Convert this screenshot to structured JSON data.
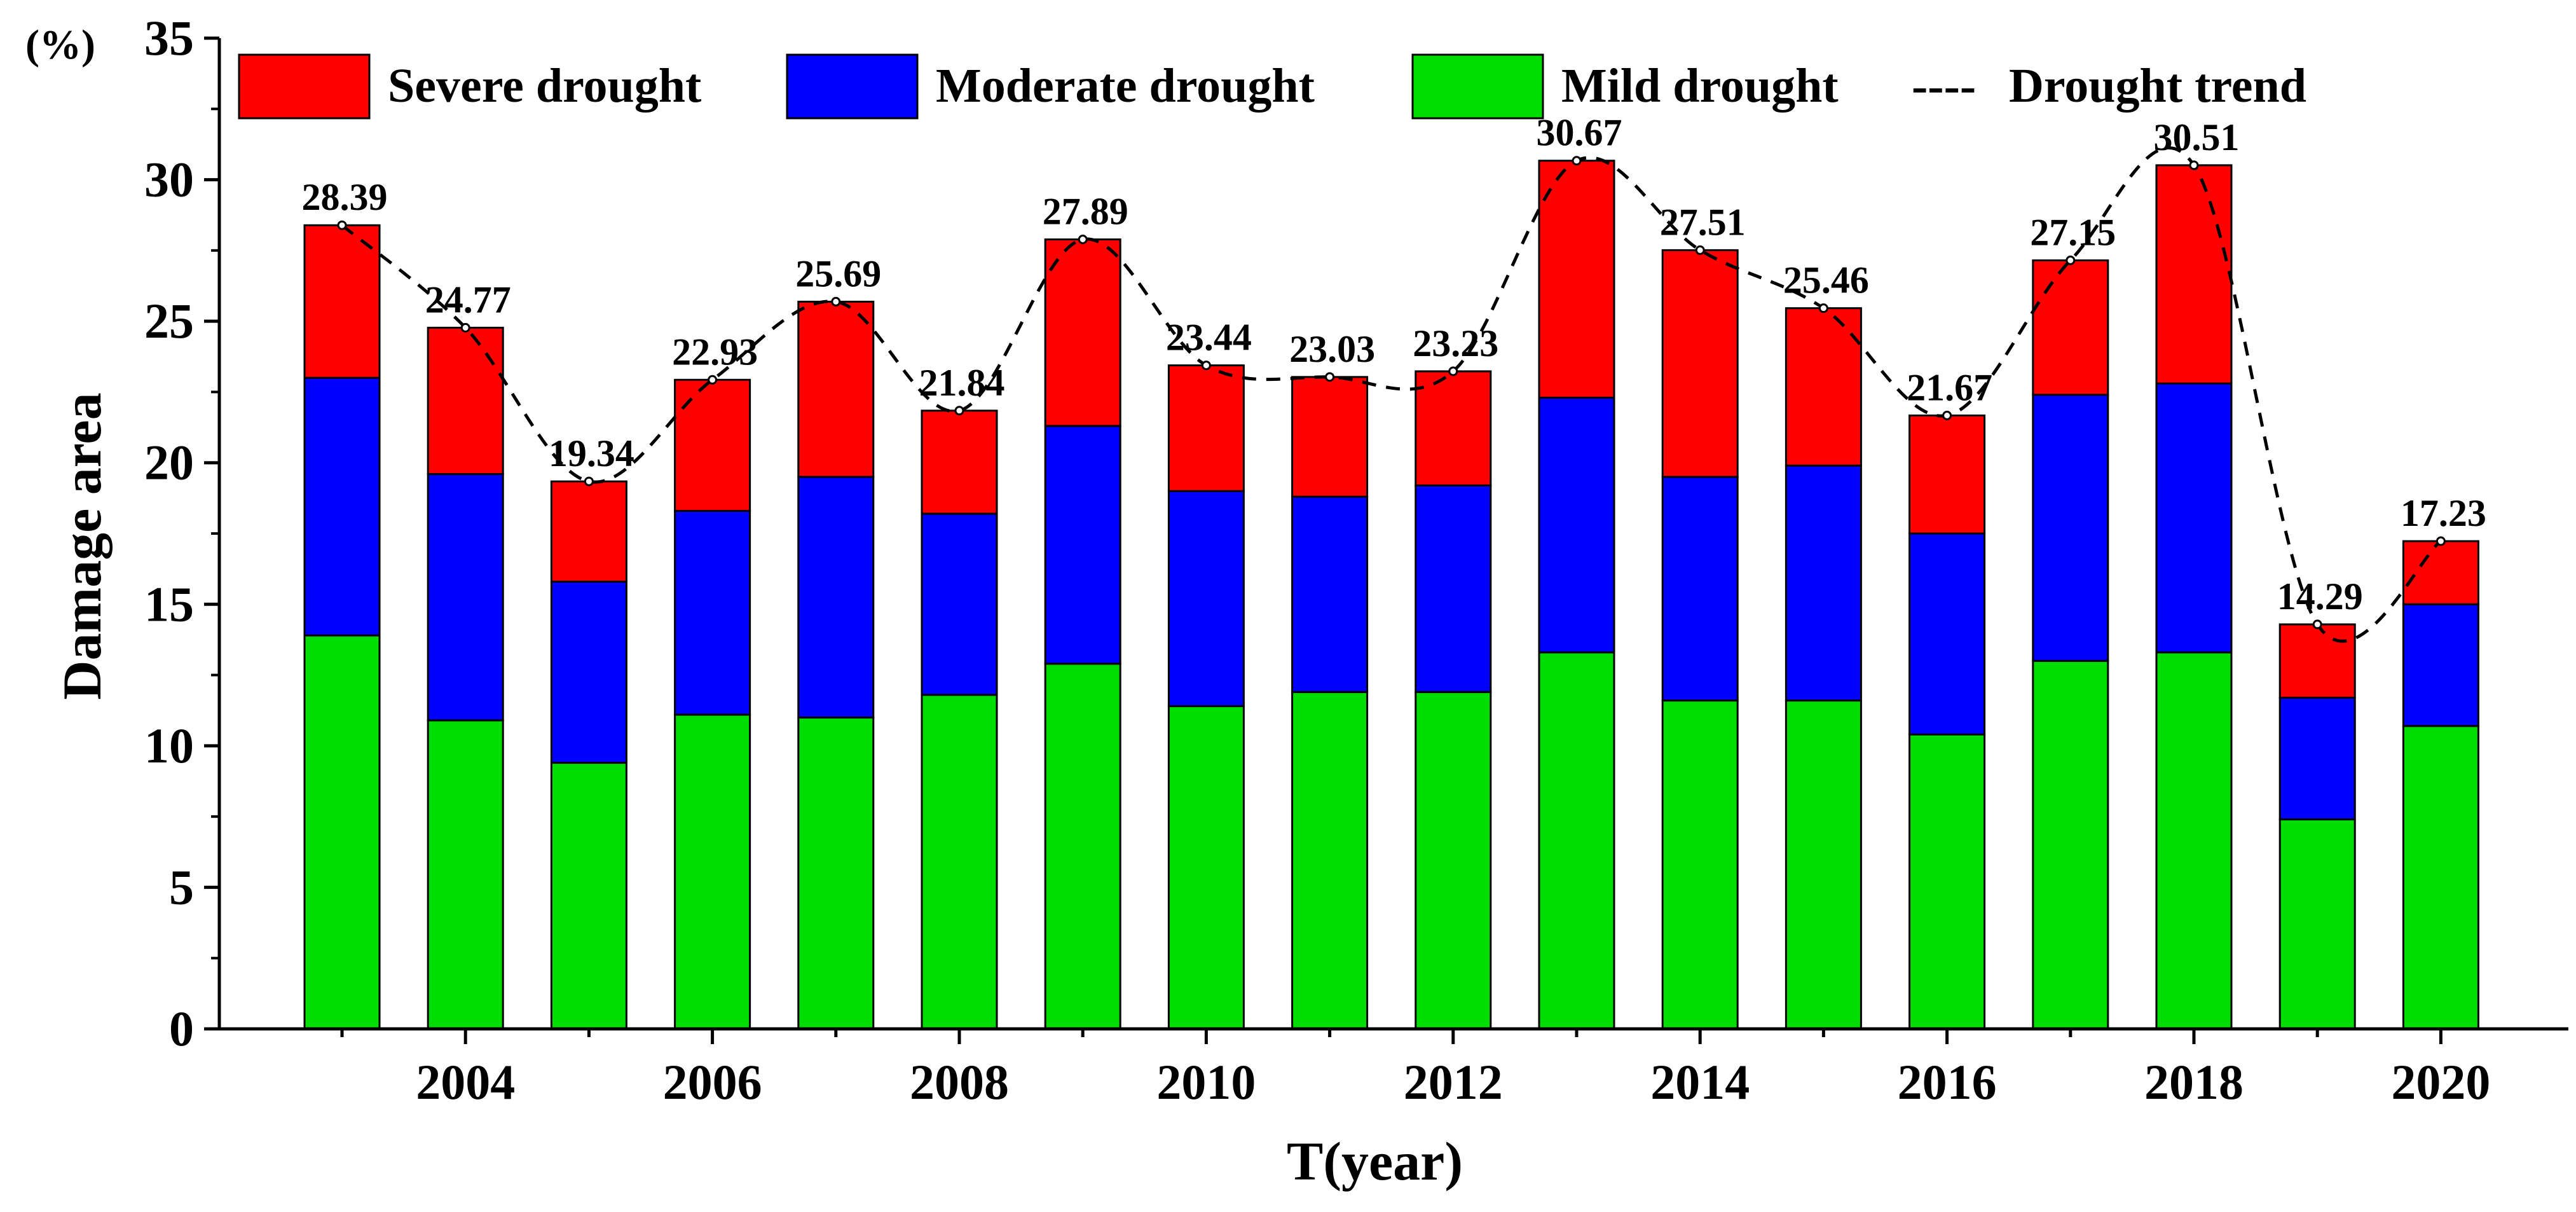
{
  "chart_data": {
    "type": "bar",
    "stacked": true,
    "categories": [
      "2003",
      "2004",
      "2005",
      "2006",
      "2007",
      "2008",
      "2009",
      "2010",
      "2011",
      "2012",
      "2013",
      "2014",
      "2015",
      "2016",
      "2017",
      "2018",
      "2019",
      "2020"
    ],
    "x_tick_labels": [
      "2004",
      "2006",
      "2008",
      "2010",
      "2012",
      "2014",
      "2016",
      "2018",
      "2020"
    ],
    "series": [
      {
        "name": "Mild drought",
        "color": "#00dd00",
        "values": [
          13.9,
          10.9,
          9.4,
          11.1,
          11.0,
          11.8,
          12.9,
          11.4,
          11.9,
          11.9,
          13.3,
          11.6,
          11.6,
          10.4,
          13.0,
          13.3,
          7.4,
          10.7
        ]
      },
      {
        "name": "Moderate drought",
        "color": "#0000ff",
        "values": [
          9.1,
          8.7,
          6.4,
          7.2,
          8.5,
          6.4,
          8.4,
          7.6,
          6.9,
          7.3,
          9.0,
          7.9,
          8.3,
          7.1,
          9.4,
          9.5,
          4.3,
          4.3
        ]
      },
      {
        "name": "Severe drought",
        "color": "#ff0000",
        "values": [
          5.39,
          5.17,
          3.54,
          4.63,
          6.19,
          3.64,
          6.59,
          4.44,
          4.23,
          4.03,
          8.37,
          8.01,
          5.56,
          4.17,
          4.75,
          7.71,
          2.59,
          2.23
        ]
      }
    ],
    "totals": [
      28.39,
      24.77,
      19.34,
      22.93,
      25.69,
      21.84,
      27.89,
      23.44,
      23.03,
      23.23,
      30.67,
      27.51,
      25.46,
      21.67,
      27.15,
      30.51,
      14.29,
      17.23
    ],
    "total_labels": [
      "28.39",
      "24.77",
      "19.34",
      "22.93",
      "25.69",
      "21.84",
      "27.89",
      "23.44",
      "23.03",
      "23.23",
      "30.67",
      "27.51",
      "25.46",
      "21.67",
      "27.15",
      "30.51",
      "14.29",
      "17.23"
    ],
    "trend_line": {
      "name": "Drought trend",
      "style": "dashed",
      "color": "#000000"
    },
    "xlabel": "T(year)",
    "ylabel": "Damage area",
    "unit": "(%)",
    "ylim": [
      0,
      35
    ],
    "yticks": [
      0,
      5,
      10,
      15,
      20,
      25,
      30,
      35
    ],
    "grid": false,
    "legend_position": "top",
    "legend": {
      "severe": "Severe drought",
      "moderate": "Moderate drought",
      "mild": "Mild drought",
      "trend_marker": "----",
      "trend": "Drought trend"
    }
  }
}
